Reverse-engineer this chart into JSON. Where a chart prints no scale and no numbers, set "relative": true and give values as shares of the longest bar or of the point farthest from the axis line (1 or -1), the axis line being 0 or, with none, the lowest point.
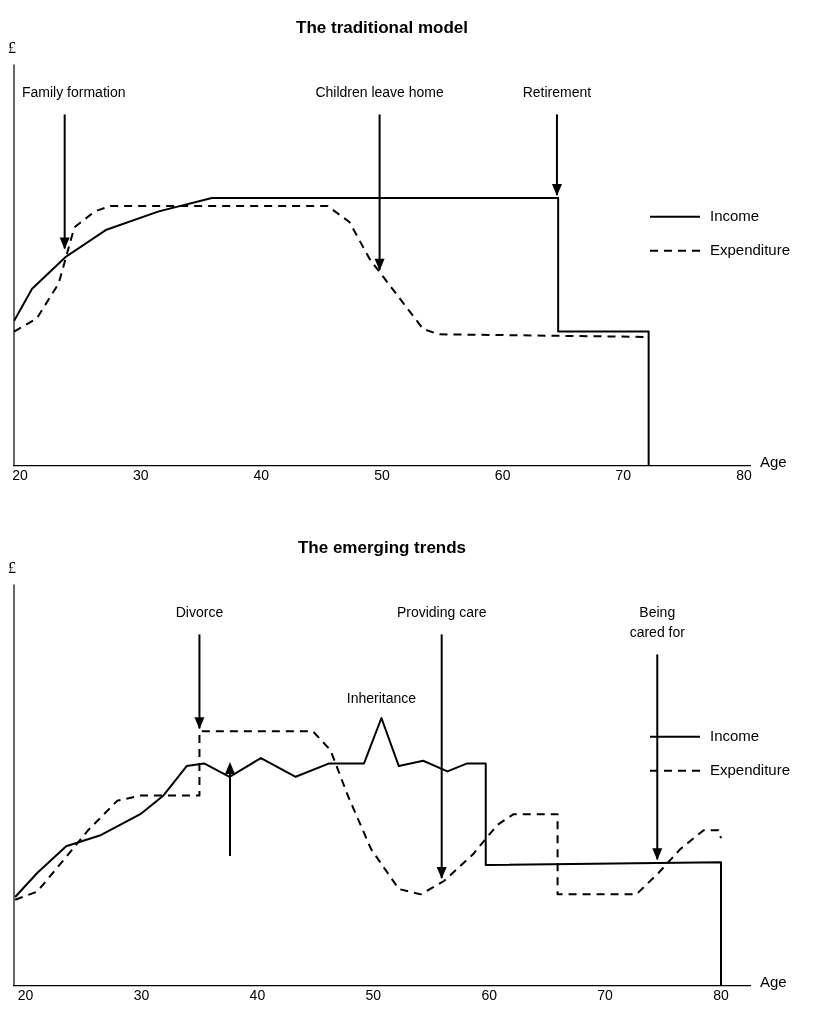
{
  "chart_data": [
    {
      "type": "line",
      "title": "The traditional model",
      "xlabel": "Age",
      "ylabel": "£",
      "relative": true,
      "xlim": [
        19.5,
        80.5
      ],
      "xticks": [
        20,
        30,
        40,
        50,
        60,
        70,
        80
      ],
      "grid": false,
      "legend": "right",
      "series": [
        {
          "name": "Income",
          "color": "#000000",
          "line_style": "solid",
          "x": [
            19.5,
            21.0,
            23.8,
            27.1,
            31.5,
            35.9,
            64.6,
            64.6,
            72.1,
            72.1
          ],
          "values": [
            0.54,
            0.66,
            0.78,
            0.88,
            0.95,
            1.0,
            1.0,
            0.5,
            0.5,
            0
          ]
        },
        {
          "name": "Expenditure",
          "color": "#000000",
          "line_style": "dashed",
          "x": [
            19.5,
            21.4,
            23.2,
            24.5,
            26.2,
            27.5,
            45.5,
            47.3,
            49.0,
            51.2,
            53.4,
            54.7,
            72.1
          ],
          "values": [
            0.5,
            0.55,
            0.68,
            0.89,
            0.95,
            0.97,
            0.97,
            0.91,
            0.77,
            0.64,
            0.51,
            0.49,
            0.48
          ]
        }
      ],
      "annotations": [
        {
          "text": "Family formation",
          "x": 23.7,
          "y": 0.8
        },
        {
          "text": "Children leave home",
          "x": 49.8,
          "y": 0.72
        },
        {
          "text": "Retirement",
          "x": 64.5,
          "y": 1.0
        }
      ]
    },
    {
      "type": "line",
      "title": "The emerging trends",
      "xlabel": "Age",
      "ylabel": "£",
      "relative": true,
      "xlim": [
        19,
        82.5
      ],
      "xticks": [
        20,
        30,
        40,
        50,
        60,
        70,
        80
      ],
      "grid": false,
      "legend": "right",
      "series": [
        {
          "name": "Income",
          "color": "#000000",
          "line_style": "solid",
          "x": [
            19.1,
            21.0,
            23.5,
            26.4,
            29.9,
            31.9,
            33.9,
            35.4,
            37.6,
            40.3,
            43.3,
            46.2,
            49.2,
            50.7,
            52.2,
            54.3,
            56.4,
            58.1,
            59.7,
            59.7,
            80.0,
            80.0
          ],
          "values": [
            0.33,
            0.42,
            0.52,
            0.56,
            0.64,
            0.71,
            0.82,
            0.83,
            0.78,
            0.85,
            0.78,
            0.83,
            0.83,
            1.0,
            0.82,
            0.84,
            0.8,
            0.83,
            0.83,
            0.45,
            0.46,
            0
          ]
        },
        {
          "name": "Expenditure",
          "color": "#000000",
          "line_style": "dashed",
          "x": [
            19.1,
            21.0,
            23.5,
            25.4,
            27.9,
            29.9,
            35.0,
            35.0,
            44.8,
            46.3,
            47.8,
            49.8,
            52.2,
            54.1,
            56.1,
            58.6,
            60.7,
            62.1,
            65.9,
            65.9,
            72.7,
            74.6,
            76.5,
            78.5,
            79.8,
            80.0
          ],
          "values": [
            0.32,
            0.35,
            0.48,
            0.58,
            0.69,
            0.71,
            0.71,
            0.95,
            0.95,
            0.88,
            0.71,
            0.51,
            0.36,
            0.34,
            0.39,
            0.49,
            0.6,
            0.64,
            0.64,
            0.34,
            0.34,
            0.42,
            0.51,
            0.58,
            0.58,
            0.55
          ]
        }
      ],
      "annotations": [
        {
          "text": "Divorce",
          "x": 35.0,
          "y": 0.95
        },
        {
          "text": "Providing care",
          "x": 55.9,
          "y": 0.39
        },
        {
          "text": "Inheritance",
          "x": 50.7,
          "y": 1.0
        },
        {
          "text": "Being\ncared for",
          "x": 74.5,
          "y": 0.46
        }
      ]
    }
  ]
}
